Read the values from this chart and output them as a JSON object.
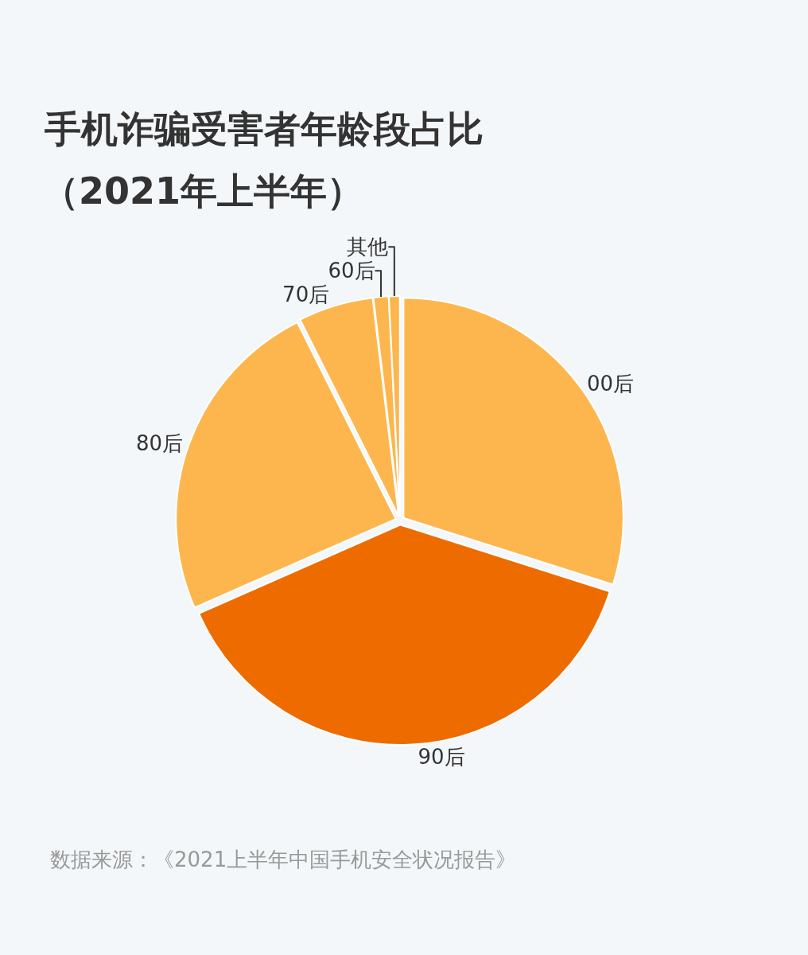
{
  "chart_data": {
    "type": "pie",
    "title": "手机诈骗受害者年龄段占比",
    "subtitle": "（2021年上半年）",
    "categories": [
      "00后",
      "90后",
      "80后",
      "70后",
      "60后",
      "其他"
    ],
    "values": [
      29.9,
      38.5,
      24.2,
      5.5,
      1.1,
      0.8
    ],
    "colors": [
      "#fdb64e",
      "#ee6b00",
      "#fdb64e",
      "#fdb64e",
      "#fdb64e",
      "#fdb64e"
    ],
    "annotations": [
      "数据来源：《2021上半年中国手机安全状况报告》"
    ],
    "legend": false
  }
}
